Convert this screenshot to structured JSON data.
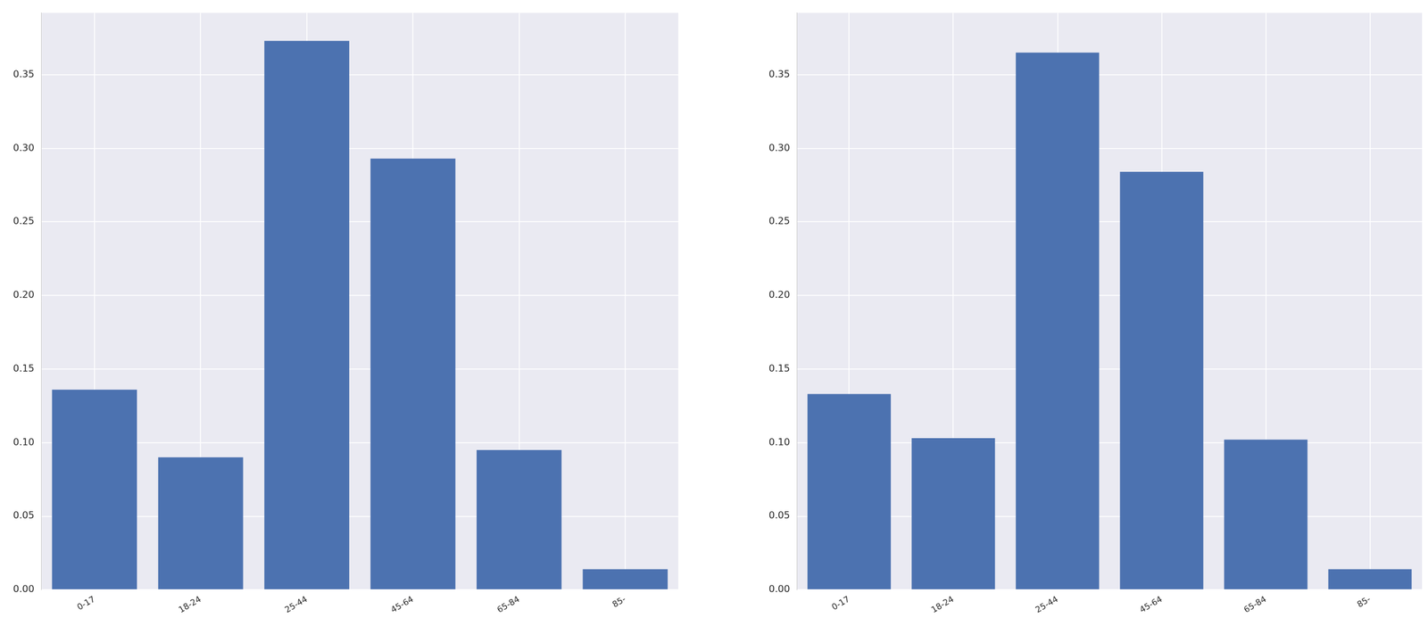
{
  "chart_data": [
    {
      "type": "bar",
      "categories": [
        "0-17",
        "18-24",
        "25-44",
        "45-64",
        "65-84",
        "85-"
      ],
      "values": [
        0.136,
        0.09,
        0.373,
        0.293,
        0.095,
        0.014
      ],
      "color": "#4c72b0",
      "ylim": [
        0,
        0.392
      ],
      "yticks": [
        {
          "value": 0,
          "label": "0.00"
        },
        {
          "value": 0.05,
          "label": "0.05"
        },
        {
          "value": 0.1,
          "label": "0.10"
        },
        {
          "value": 0.15,
          "label": "0.15"
        },
        {
          "value": 0.2,
          "label": "0.20"
        },
        {
          "value": 0.25,
          "label": "0.25"
        },
        {
          "value": 0.3,
          "label": "0.30"
        },
        {
          "value": 0.35,
          "label": "0.35"
        }
      ],
      "grid": true
    },
    {
      "type": "bar",
      "categories": [
        "0-17",
        "18-24",
        "25-44",
        "45-64",
        "65-84",
        "85-"
      ],
      "values": [
        0.133,
        0.103,
        0.365,
        0.284,
        0.102,
        0.014
      ],
      "color": "#4c72b0",
      "ylim": [
        0,
        0.392
      ],
      "yticks": [
        {
          "value": 0,
          "label": "0.00"
        },
        {
          "value": 0.05,
          "label": "0.05"
        },
        {
          "value": 0.1,
          "label": "0.10"
        },
        {
          "value": 0.15,
          "label": "0.15"
        },
        {
          "value": 0.2,
          "label": "0.20"
        },
        {
          "value": 0.25,
          "label": "0.25"
        },
        {
          "value": 0.3,
          "label": "0.30"
        },
        {
          "value": 0.35,
          "label": "0.35"
        }
      ],
      "grid": true
    }
  ]
}
